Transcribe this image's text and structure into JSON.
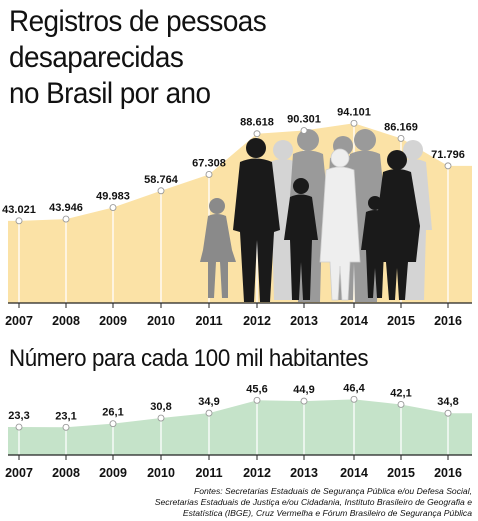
{
  "title": {
    "line1": "Registros de pessoas desaparecidas",
    "line2": "no Brasil por ano"
  },
  "subtitle": "Número para cada 100 mil habitantes",
  "colors": {
    "area_top": "#fbe2a6",
    "area_top_line": "#f7d98e",
    "area_bottom": "#c5e3c9",
    "area_bottom_line": "#a9d5b0",
    "silhouette_dark": "#1a1a1a",
    "silhouette_gray": "#8a8a8a",
    "silhouette_light": "#d4d4d4",
    "silhouette_white": "#eeeeee"
  },
  "chart_data": [
    {
      "type": "area",
      "categories": [
        "2007",
        "2008",
        "2009",
        "2010",
        "2011",
        "2012",
        "2013",
        "2014",
        "2015",
        "2016"
      ],
      "values": [
        43021,
        43946,
        49983,
        58764,
        67308,
        88618,
        90301,
        94101,
        86169,
        71796
      ],
      "value_labels": [
        "43.021",
        "43.946",
        "49.983",
        "58.764",
        "67.308",
        "88.618",
        "90.301",
        "94.101",
        "86.169",
        "71.796"
      ],
      "ylim": [
        0,
        100000
      ],
      "grid": false,
      "title": "Registros de pessoas desaparecidas no Brasil por ano"
    },
    {
      "type": "area",
      "categories": [
        "2007",
        "2008",
        "2009",
        "2010",
        "2011",
        "2012",
        "2013",
        "2014",
        "2015",
        "2016"
      ],
      "values": [
        23.3,
        23.1,
        26.1,
        30.8,
        34.9,
        45.6,
        44.9,
        46.4,
        42.1,
        34.8
      ],
      "value_labels": [
        "23,3",
        "23,1",
        "26,1",
        "30,8",
        "34,9",
        "45,6",
        "44,9",
        "46,4",
        "42,1",
        "34,8"
      ],
      "ylim": [
        0,
        50
      ],
      "grid": false,
      "title": "Número para cada 100 mil habitantes"
    }
  ],
  "source": {
    "line1": "Fontes: Secretarias Estaduais de Segurança Pública e/ou Defesa Social,",
    "line2": "Secretarias Estaduais de Justiça e/ou Cidadania, Instituto Brasileiro de Geografia e",
    "line3": "Estatística (IBGE), Cruz Vermelha e Fórum Brasileiro de Segurança Pública"
  }
}
